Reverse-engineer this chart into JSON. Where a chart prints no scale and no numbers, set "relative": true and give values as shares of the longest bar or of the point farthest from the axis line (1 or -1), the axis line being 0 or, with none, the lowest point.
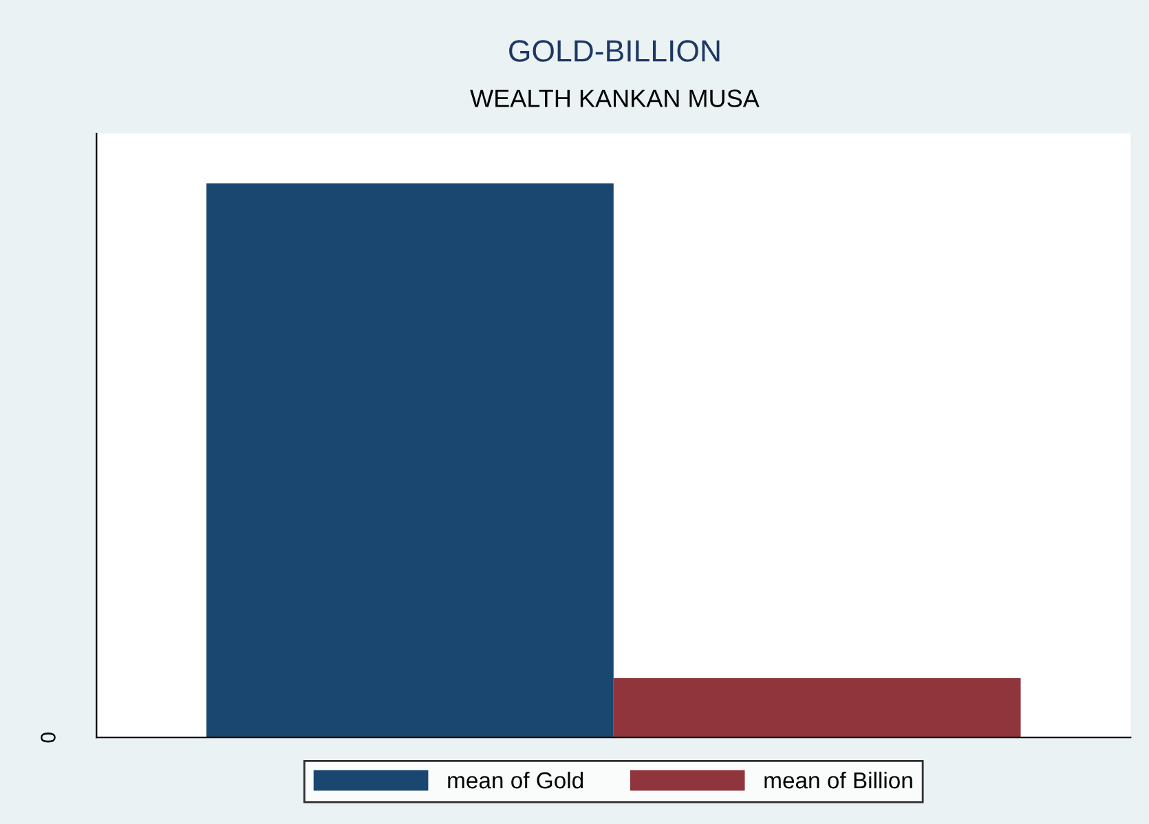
{
  "chart_data": {
    "type": "bar",
    "title": "GOLD-BILLION",
    "subtitle": "WEALTH KANKAN MUSA",
    "categories": [
      null
    ],
    "relative": true,
    "annotations": [
      "0"
    ],
    "series": [
      {
        "name": "mean of Gold",
        "color": "#1a476f",
        "values": [
          1
        ]
      },
      {
        "name": "mean of Billion",
        "color": "#90353b",
        "values": [
          0.107
        ]
      }
    ],
    "legend": "bottom"
  }
}
